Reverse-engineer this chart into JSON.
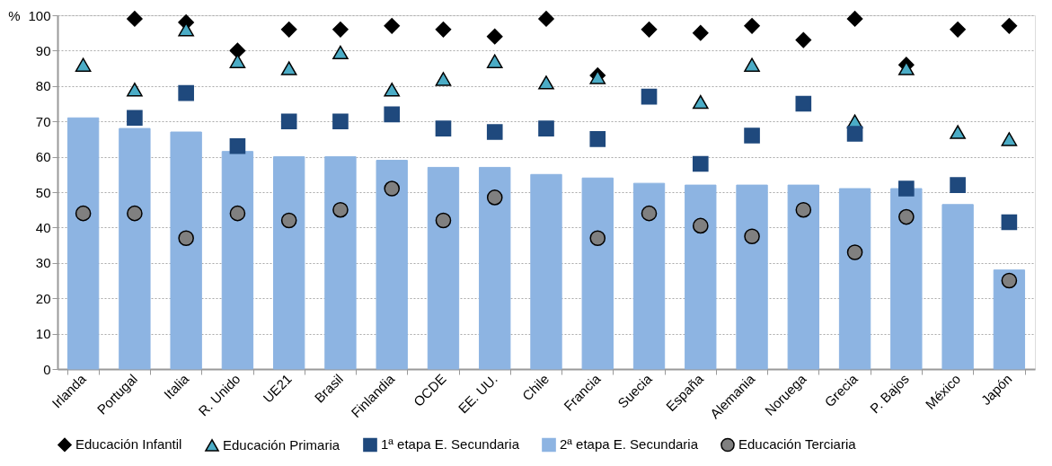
{
  "chart_data": {
    "type": "bar",
    "ylabel": "%",
    "categories": [
      "Irlanda",
      "Portugal",
      "Italia",
      "R. Unido",
      "UE21",
      "Brasil",
      "Finlandia",
      "OCDE",
      "EE. UU.",
      "Chile",
      "Francia",
      "Suecia",
      "España",
      "Alemania",
      "Noruega",
      "Grecia",
      "P. Bajos",
      "México",
      "Japón"
    ],
    "series": [
      {
        "name": "Educación Infantil",
        "type": "scatter",
        "marker": "diamond",
        "color": "#000000",
        "values": [
          null,
          99,
          98,
          90,
          96,
          96,
          97,
          96,
          94,
          99,
          83,
          96,
          95,
          97,
          93,
          99,
          86,
          96,
          97
        ]
      },
      {
        "name": "Educación Primaria",
        "type": "scatter",
        "marker": "triangle",
        "color": "#4bacc6",
        "values": [
          86,
          79,
          96,
          87,
          85,
          89.5,
          79,
          82,
          87,
          81,
          82.5,
          null,
          75.5,
          86,
          null,
          70,
          85,
          67,
          65
        ]
      },
      {
        "name": "1ª etapa E. Secundaria",
        "type": "scatter",
        "marker": "square",
        "color": "#1f497d",
        "values": [
          null,
          71,
          78,
          63,
          70,
          70,
          72,
          68,
          67,
          68,
          65,
          77,
          58,
          66,
          75,
          66.5,
          51,
          52,
          41.5
        ]
      },
      {
        "name": "2ª etapa E. Secundaria",
        "color": "#8db4e2",
        "values": [
          71,
          68,
          67,
          61.5,
          60,
          60,
          59,
          57,
          57,
          55,
          54,
          52.5,
          52,
          52,
          52,
          51,
          51,
          46.5,
          28
        ]
      },
      {
        "name": "Educación Terciaria",
        "type": "scatter",
        "marker": "circle",
        "color": "#808080",
        "values": [
          44,
          44,
          37,
          44,
          42,
          45,
          51,
          42,
          48.5,
          null,
          37,
          44,
          40.5,
          37.5,
          45,
          33,
          43,
          null,
          25
        ]
      }
    ],
    "ylim": [
      0,
      100
    ],
    "yticks": [
      0,
      10,
      20,
      30,
      40,
      50,
      60,
      70,
      80,
      90,
      100
    ],
    "grid": "y",
    "legend": "bottom"
  }
}
